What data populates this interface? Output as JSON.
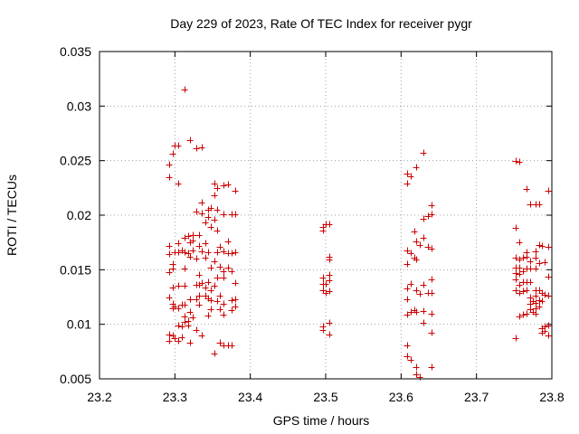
{
  "chart_data": {
    "type": "scatter",
    "title": "Day 229 of 2023, Rate Of TEC Index for receiver pygr",
    "xlabel": "GPS time / hours",
    "ylabel": "ROTI / TECUs",
    "xlim": [
      23.2,
      23.8
    ],
    "ylim": [
      0.005,
      0.035
    ],
    "x_ticks": [
      "23.2",
      "23.3",
      "23.4",
      "23.5",
      "23.6",
      "23.7",
      "23.8"
    ],
    "y_ticks": [
      "0.005",
      "0.01",
      "0.015",
      "0.02",
      "0.025",
      "0.03",
      "0.035"
    ],
    "grid": true,
    "marker": "+",
    "color": "#cc0000",
    "points": [
      [
        23.292,
        0.0246
      ],
      [
        23.292,
        0.0235
      ],
      [
        23.292,
        0.0172
      ],
      [
        23.292,
        0.0164
      ],
      [
        23.292,
        0.0148
      ],
      [
        23.292,
        0.0125
      ],
      [
        23.292,
        0.0091
      ],
      [
        23.292,
        0.0085
      ],
      [
        23.297,
        0.0256
      ],
      [
        23.297,
        0.0155
      ],
      [
        23.297,
        0.0151
      ],
      [
        23.297,
        0.0134
      ],
      [
        23.297,
        0.0119
      ],
      [
        23.297,
        0.0115
      ],
      [
        23.297,
        0.009
      ],
      [
        23.3,
        0.0264
      ],
      [
        23.3,
        0.0166
      ],
      [
        23.3,
        0.0116
      ],
      [
        23.3,
        0.0087
      ],
      [
        23.304,
        0.0264
      ],
      [
        23.304,
        0.0229
      ],
      [
        23.304,
        0.0174
      ],
      [
        23.304,
        0.0166
      ],
      [
        23.304,
        0.0135
      ],
      [
        23.304,
        0.0115
      ],
      [
        23.304,
        0.0099
      ],
      [
        23.304,
        0.0085
      ],
      [
        23.309,
        0.0168
      ],
      [
        23.309,
        0.0118
      ],
      [
        23.309,
        0.0098
      ],
      [
        23.309,
        0.0088
      ],
      [
        23.313,
        0.0315
      ],
      [
        23.313,
        0.0179
      ],
      [
        23.313,
        0.0166
      ],
      [
        23.313,
        0.0151
      ],
      [
        23.313,
        0.0135
      ],
      [
        23.313,
        0.0118
      ],
      [
        23.313,
        0.0107
      ],
      [
        23.313,
        0.0102
      ],
      [
        23.318,
        0.0181
      ],
      [
        23.318,
        0.0165
      ],
      [
        23.318,
        0.0103
      ],
      [
        23.318,
        0.0099
      ],
      [
        23.32,
        0.0269
      ],
      [
        23.32,
        0.0175
      ],
      [
        23.32,
        0.0162
      ],
      [
        23.32,
        0.0123
      ],
      [
        23.32,
        0.0111
      ],
      [
        23.32,
        0.0083
      ],
      [
        23.324,
        0.0182
      ],
      [
        23.324,
        0.0177
      ],
      [
        23.324,
        0.0168
      ],
      [
        23.324,
        0.0106
      ],
      [
        23.328,
        0.0261
      ],
      [
        23.328,
        0.0203
      ],
      [
        23.328,
        0.016
      ],
      [
        23.328,
        0.0136
      ],
      [
        23.328,
        0.0123
      ],
      [
        23.328,
        0.0095
      ],
      [
        23.332,
        0.0182
      ],
      [
        23.332,
        0.0172
      ],
      [
        23.332,
        0.0145
      ],
      [
        23.332,
        0.0136
      ],
      [
        23.332,
        0.0126
      ],
      [
        23.332,
        0.0118
      ],
      [
        23.336,
        0.0262
      ],
      [
        23.336,
        0.0212
      ],
      [
        23.336,
        0.0202
      ],
      [
        23.336,
        0.0167
      ],
      [
        23.336,
        0.0138
      ],
      [
        23.336,
        0.009
      ],
      [
        23.34,
        0.0193
      ],
      [
        23.34,
        0.0174
      ],
      [
        23.34,
        0.0161
      ],
      [
        23.34,
        0.0134
      ],
      [
        23.34,
        0.0126
      ],
      [
        23.344,
        0.0205
      ],
      [
        23.344,
        0.0198
      ],
      [
        23.344,
        0.0166
      ],
      [
        23.344,
        0.0139
      ],
      [
        23.344,
        0.0124
      ],
      [
        23.344,
        0.0108
      ],
      [
        23.348,
        0.0207
      ],
      [
        23.348,
        0.0189
      ],
      [
        23.348,
        0.0152
      ],
      [
        23.348,
        0.0131
      ],
      [
        23.348,
        0.0122
      ],
      [
        23.348,
        0.0114
      ],
      [
        23.352,
        0.0229
      ],
      [
        23.352,
        0.0218
      ],
      [
        23.352,
        0.0196
      ],
      [
        23.352,
        0.0158
      ],
      [
        23.352,
        0.0135
      ],
      [
        23.352,
        0.0073
      ],
      [
        23.356,
        0.0225
      ],
      [
        23.356,
        0.0205
      ],
      [
        23.356,
        0.0186
      ],
      [
        23.356,
        0.0166
      ],
      [
        23.356,
        0.0143
      ],
      [
        23.356,
        0.0121
      ],
      [
        23.36,
        0.0171
      ],
      [
        23.36,
        0.0153
      ],
      [
        23.36,
        0.0126
      ],
      [
        23.36,
        0.0114
      ],
      [
        23.36,
        0.0083
      ],
      [
        23.365,
        0.0227
      ],
      [
        23.365,
        0.0201
      ],
      [
        23.365,
        0.0167
      ],
      [
        23.365,
        0.0149
      ],
      [
        23.365,
        0.0143
      ],
      [
        23.365,
        0.0119
      ],
      [
        23.365,
        0.0109
      ],
      [
        23.365,
        0.0081
      ],
      [
        23.37,
        0.0228
      ],
      [
        23.37,
        0.0176
      ],
      [
        23.37,
        0.0165
      ],
      [
        23.37,
        0.0152
      ],
      [
        23.37,
        0.0081
      ],
      [
        23.375,
        0.0201
      ],
      [
        23.375,
        0.0165
      ],
      [
        23.375,
        0.0149
      ],
      [
        23.375,
        0.0122
      ],
      [
        23.375,
        0.0113
      ],
      [
        23.375,
        0.0081
      ],
      [
        23.38,
        0.0222
      ],
      [
        23.38,
        0.0201
      ],
      [
        23.38,
        0.0166
      ],
      [
        23.38,
        0.0138
      ],
      [
        23.38,
        0.0123
      ],
      [
        23.38,
        0.0116
      ],
      [
        23.497,
        0.0189
      ],
      [
        23.497,
        0.0186
      ],
      [
        23.497,
        0.0143
      ],
      [
        23.497,
        0.0137
      ],
      [
        23.497,
        0.0131
      ],
      [
        23.497,
        0.0098
      ],
      [
        23.497,
        0.0095
      ],
      [
        23.5,
        0.0192
      ],
      [
        23.5,
        0.0137
      ],
      [
        23.5,
        0.0129
      ],
      [
        23.505,
        0.0192
      ],
      [
        23.505,
        0.0162
      ],
      [
        23.505,
        0.0159
      ],
      [
        23.505,
        0.0145
      ],
      [
        23.505,
        0.014
      ],
      [
        23.505,
        0.013
      ],
      [
        23.505,
        0.0101
      ],
      [
        23.505,
        0.0091
      ],
      [
        23.608,
        0.0238
      ],
      [
        23.608,
        0.0229
      ],
      [
        23.608,
        0.0168
      ],
      [
        23.608,
        0.0155
      ],
      [
        23.608,
        0.0133
      ],
      [
        23.608,
        0.0123
      ],
      [
        23.608,
        0.0109
      ],
      [
        23.608,
        0.0081
      ],
      [
        23.608,
        0.0071
      ],
      [
        23.613,
        0.0236
      ],
      [
        23.613,
        0.0165
      ],
      [
        23.613,
        0.0137
      ],
      [
        23.613,
        0.0111
      ],
      [
        23.613,
        0.0067
      ],
      [
        23.617,
        0.0185
      ],
      [
        23.617,
        0.0161
      ],
      [
        23.617,
        0.0113
      ],
      [
        23.62,
        0.0244
      ],
      [
        23.62,
        0.0176
      ],
      [
        23.62,
        0.0159
      ],
      [
        23.62,
        0.0131
      ],
      [
        23.62,
        0.0111
      ],
      [
        23.62,
        0.0061
      ],
      [
        23.62,
        0.0054
      ],
      [
        23.625,
        0.0173
      ],
      [
        23.625,
        0.0128
      ],
      [
        23.625,
        0.0052
      ],
      [
        23.63,
        0.0257
      ],
      [
        23.63,
        0.0197
      ],
      [
        23.63,
        0.0179
      ],
      [
        23.63,
        0.0136
      ],
      [
        23.63,
        0.0112
      ],
      [
        23.63,
        0.0101
      ],
      [
        23.635,
        0.0199
      ],
      [
        23.635,
        0.0171
      ],
      [
        23.635,
        0.0129
      ],
      [
        23.64,
        0.0209
      ],
      [
        23.64,
        0.0201
      ],
      [
        23.64,
        0.0169
      ],
      [
        23.64,
        0.0141
      ],
      [
        23.64,
        0.0129
      ],
      [
        23.64,
        0.011
      ],
      [
        23.64,
        0.0092
      ],
      [
        23.64,
        0.0061
      ],
      [
        23.752,
        0.025
      ],
      [
        23.752,
        0.0188
      ],
      [
        23.752,
        0.0161
      ],
      [
        23.752,
        0.0152
      ],
      [
        23.752,
        0.0147
      ],
      [
        23.752,
        0.0141
      ],
      [
        23.752,
        0.0131
      ],
      [
        23.752,
        0.0087
      ],
      [
        23.757,
        0.0249
      ],
      [
        23.757,
        0.0175
      ],
      [
        23.757,
        0.0159
      ],
      [
        23.757,
        0.0152
      ],
      [
        23.757,
        0.0146
      ],
      [
        23.757,
        0.0136
      ],
      [
        23.757,
        0.0129
      ],
      [
        23.757,
        0.0107
      ],
      [
        23.762,
        0.0161
      ],
      [
        23.762,
        0.0149
      ],
      [
        23.762,
        0.0139
      ],
      [
        23.762,
        0.013
      ],
      [
        23.762,
        0.0109
      ],
      [
        23.766,
        0.0224
      ],
      [
        23.766,
        0.0166
      ],
      [
        23.766,
        0.0162
      ],
      [
        23.766,
        0.0151
      ],
      [
        23.766,
        0.0139
      ],
      [
        23.766,
        0.0131
      ],
      [
        23.766,
        0.011
      ],
      [
        23.771,
        0.021
      ],
      [
        23.771,
        0.0158
      ],
      [
        23.771,
        0.0151
      ],
      [
        23.771,
        0.0139
      ],
      [
        23.771,
        0.0125
      ],
      [
        23.771,
        0.0119
      ],
      [
        23.771,
        0.0114
      ],
      [
        23.775,
        0.0121
      ],
      [
        23.775,
        0.0111
      ],
      [
        23.779,
        0.021
      ],
      [
        23.779,
        0.0167
      ],
      [
        23.779,
        0.0161
      ],
      [
        23.779,
        0.0151
      ],
      [
        23.779,
        0.0131
      ],
      [
        23.779,
        0.0126
      ],
      [
        23.779,
        0.012
      ],
      [
        23.779,
        0.0115
      ],
      [
        23.779,
        0.011
      ],
      [
        23.783,
        0.021
      ],
      [
        23.783,
        0.0173
      ],
      [
        23.783,
        0.0156
      ],
      [
        23.783,
        0.0131
      ],
      [
        23.783,
        0.0122
      ],
      [
        23.783,
        0.0116
      ],
      [
        23.787,
        0.0172
      ],
      [
        23.787,
        0.0129
      ],
      [
        23.787,
        0.0121
      ],
      [
        23.787,
        0.0096
      ],
      [
        23.787,
        0.0092
      ],
      [
        23.791,
        0.0157
      ],
      [
        23.791,
        0.0127
      ],
      [
        23.791,
        0.0098
      ],
      [
        23.791,
        0.0094
      ],
      [
        23.795,
        0.0222
      ],
      [
        23.795,
        0.0171
      ],
      [
        23.795,
        0.0144
      ],
      [
        23.795,
        0.0126
      ],
      [
        23.795,
        0.0099
      ],
      [
        23.795,
        0.009
      ]
    ]
  }
}
